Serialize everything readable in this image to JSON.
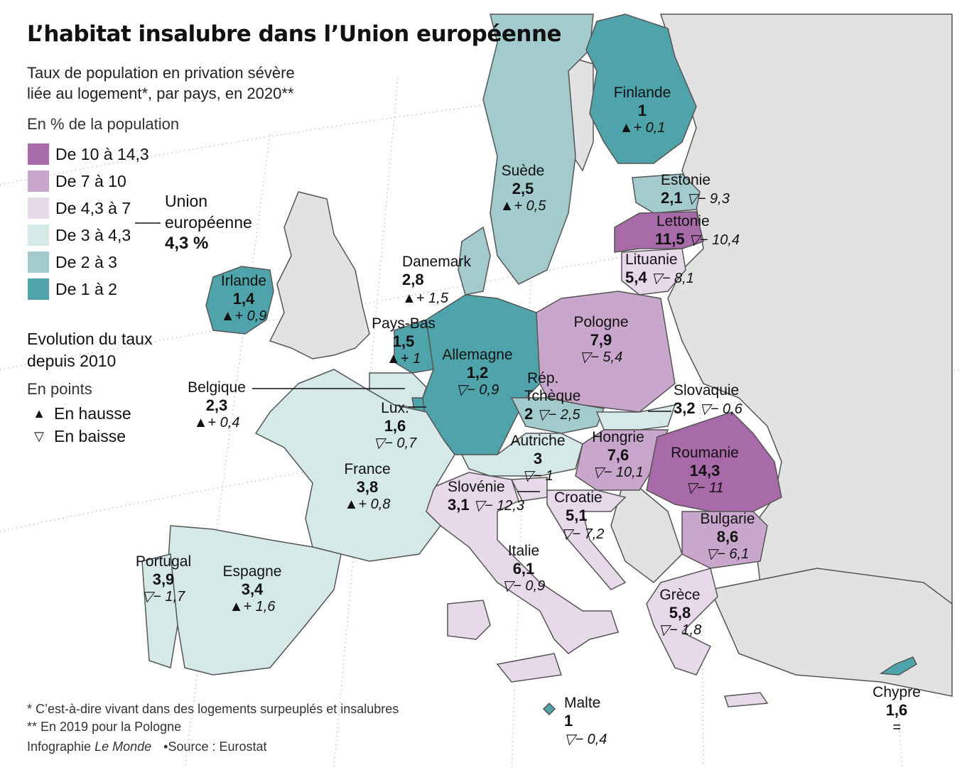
{
  "title": "L’habitat insalubre dans l’Union européenne",
  "subtitle": [
    "Taux de population en privation sévère",
    "liée au logement*, par pays, en 2020**"
  ],
  "unit": "En % de la population",
  "legend": [
    {
      "label": "De 10 à 14,3",
      "color": "#a86aa8"
    },
    {
      "label": "De 7 à 10",
      "color": "#c9a6cb"
    },
    {
      "label": "De 4,3 à 7",
      "color": "#e7d9ea"
    },
    {
      "label": "De 3 à 4,3",
      "color": "#d5e9e9"
    },
    {
      "label": "De 2 à 3",
      "color": "#a3cbcd"
    },
    {
      "label": "De 1 à 2",
      "color": "#4fa4ab"
    }
  ],
  "eu": {
    "name": [
      "Union",
      "européenne"
    ],
    "value": "4,3 %"
  },
  "evolution": {
    "title": [
      "Evolution du taux",
      "depuis 2010"
    ],
    "unit": "En points",
    "up_label": "En hausse",
    "down_label": "En baisse",
    "up_glyph": "▲",
    "down_glyph": "▽"
  },
  "countries": {
    "finlande": {
      "name": "Finlande",
      "value": "1",
      "change": "▲+ 0,1"
    },
    "suede": {
      "name": "Suède",
      "value": "2,5",
      "change": "▲+ 0,5"
    },
    "estonie": {
      "name": "Estonie",
      "value": "2,1",
      "change": "▽− 9,3"
    },
    "lettonie": {
      "name": "Lettonie",
      "value": "11,5",
      "change": "▽− 10,4"
    },
    "lituanie": {
      "name": "Lituanie",
      "value": "5,4",
      "change": "▽− 8,1"
    },
    "danemark": {
      "name": "Danemark",
      "value": "2,8",
      "change": "▲+ 1,5"
    },
    "irlande": {
      "name": "Irlande",
      "value": "1,4",
      "change": "▲+ 0,9"
    },
    "paysbas": {
      "name": "Pays-Bas",
      "value": "1,5",
      "change": "▲+ 1"
    },
    "allemagne": {
      "name": "Allemagne",
      "value": "1,2",
      "change": "▽− 0,9"
    },
    "pologne": {
      "name": "Pologne",
      "value": "7,9",
      "change": "▽− 5,4"
    },
    "belgique": {
      "name": "Belgique",
      "value": "2,3",
      "change": "▲+ 0,4"
    },
    "rtcheque": {
      "name": [
        "Rép.",
        "Tchèque"
      ],
      "value": "2",
      "change": "▽− 2,5"
    },
    "slovaquie": {
      "name": "Slovaquie",
      "value": "3,2",
      "change": "▽− 0,6"
    },
    "lux": {
      "name": "Lux.",
      "value": "1,6",
      "change": "▽− 0,7"
    },
    "autriche": {
      "name": "Autriche",
      "value": "3",
      "change": "▽− 1"
    },
    "hongrie": {
      "name": "Hongrie",
      "value": "7,6",
      "change": "▽− 10,1"
    },
    "roumanie": {
      "name": "Roumanie",
      "value": "14,3",
      "change": "▽− 11"
    },
    "france": {
      "name": "France",
      "value": "3,8",
      "change": "▲+ 0,8"
    },
    "slovenie": {
      "name": "Slovénie",
      "value": "3,1",
      "change": "▽− 12,3"
    },
    "croatie": {
      "name": "Croatie",
      "value": "5,1",
      "change": "▽− 7,2"
    },
    "bulgarie": {
      "name": "Bulgarie",
      "value": "8,6",
      "change": "▽− 6,1"
    },
    "portugal": {
      "name": "Portugal",
      "value": "3,9",
      "change": "▽− 1,7"
    },
    "espagne": {
      "name": "Espagne",
      "value": "3,4",
      "change": "▲+ 1,6"
    },
    "italie": {
      "name": "Italie",
      "value": "6,1",
      "change": "▽− 0,9"
    },
    "grece": {
      "name": "Grèce",
      "value": "5,8",
      "change": "▽− 1,8"
    },
    "chypre": {
      "name": "Chypre",
      "value": "1,6",
      "change": "="
    },
    "malte": {
      "name": "Malte",
      "value": "1",
      "change": "▽− 0,4"
    }
  },
  "footnotes": [
    "* C’est-à-dire vivant dans des logements surpeuplés et insalubres",
    "** En 2019 pour la Pologne"
  ],
  "credit": {
    "prefix": "Infographie ",
    "brand": "Le Monde",
    "source": "Source : Eurostat"
  },
  "colors": {
    "non_eu": "#e2e2e2",
    "border": "#555555",
    "graticule": "#9a9a9a"
  }
}
